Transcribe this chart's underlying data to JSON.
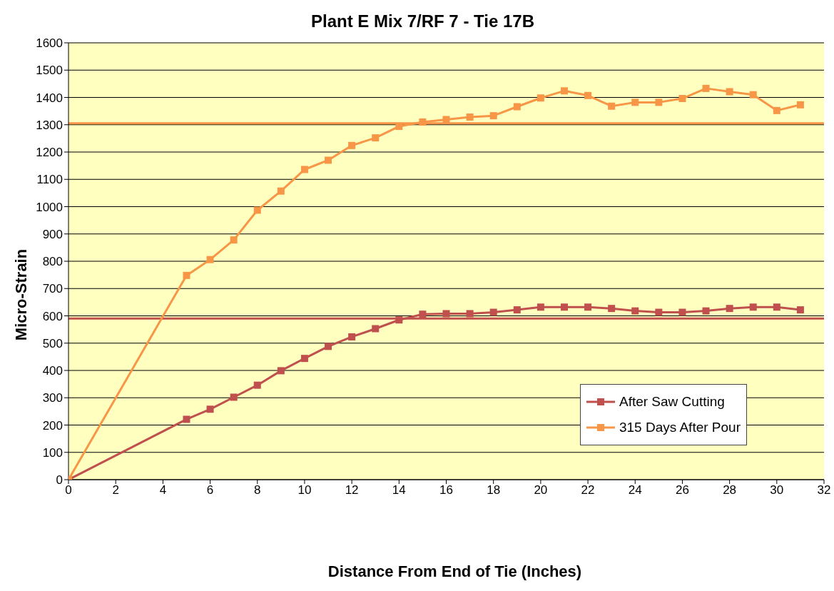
{
  "chart_data": {
    "type": "line",
    "title": "Plant E Mix 7/RF 7 - Tie 17B",
    "xlabel": "Distance From End of Tie (Inches)",
    "ylabel": "Micro-Strain",
    "x": [
      0,
      5,
      6,
      7,
      8,
      9,
      10,
      11,
      12,
      13,
      14,
      15,
      16,
      17,
      18,
      19,
      20,
      21,
      22,
      23,
      24,
      25,
      26,
      27,
      28,
      29,
      30,
      31
    ],
    "series": [
      {
        "name": "After Saw Cutting",
        "color": "#c0504d",
        "values": [
          0,
          221,
          258,
          302,
          346,
          399,
          444,
          488,
          523,
          553,
          585,
          606,
          608,
          608,
          613,
          622,
          632,
          632,
          632,
          627,
          618,
          613,
          613,
          618,
          627,
          632,
          632,
          622
        ]
      },
      {
        "name": "315 Days After Pour",
        "color": "#f79646",
        "values": [
          0,
          748,
          806,
          878,
          987,
          1057,
          1136,
          1170,
          1224,
          1252,
          1294,
          1310,
          1319,
          1328,
          1333,
          1366,
          1398,
          1424,
          1407,
          1368,
          1382,
          1382,
          1396,
          1433,
          1421,
          1410,
          1352,
          1373
        ]
      }
    ],
    "ref_lines": [
      {
        "axis": "y",
        "value": 590,
        "color": "#c0504d"
      },
      {
        "axis": "y",
        "value": 1305,
        "color": "#f79646"
      }
    ],
    "xlim": [
      0,
      32
    ],
    "xticks": [
      0,
      2,
      4,
      6,
      8,
      10,
      12,
      14,
      16,
      18,
      20,
      22,
      24,
      26,
      28,
      30,
      32
    ],
    "ylim": [
      0,
      1600
    ],
    "yticks": [
      0,
      100,
      200,
      300,
      400,
      500,
      600,
      700,
      800,
      900,
      1000,
      1100,
      1200,
      1300,
      1400,
      1500,
      1600
    ],
    "grid": "y",
    "legend": "bottom right",
    "marker": "square",
    "line_style": "solid"
  }
}
